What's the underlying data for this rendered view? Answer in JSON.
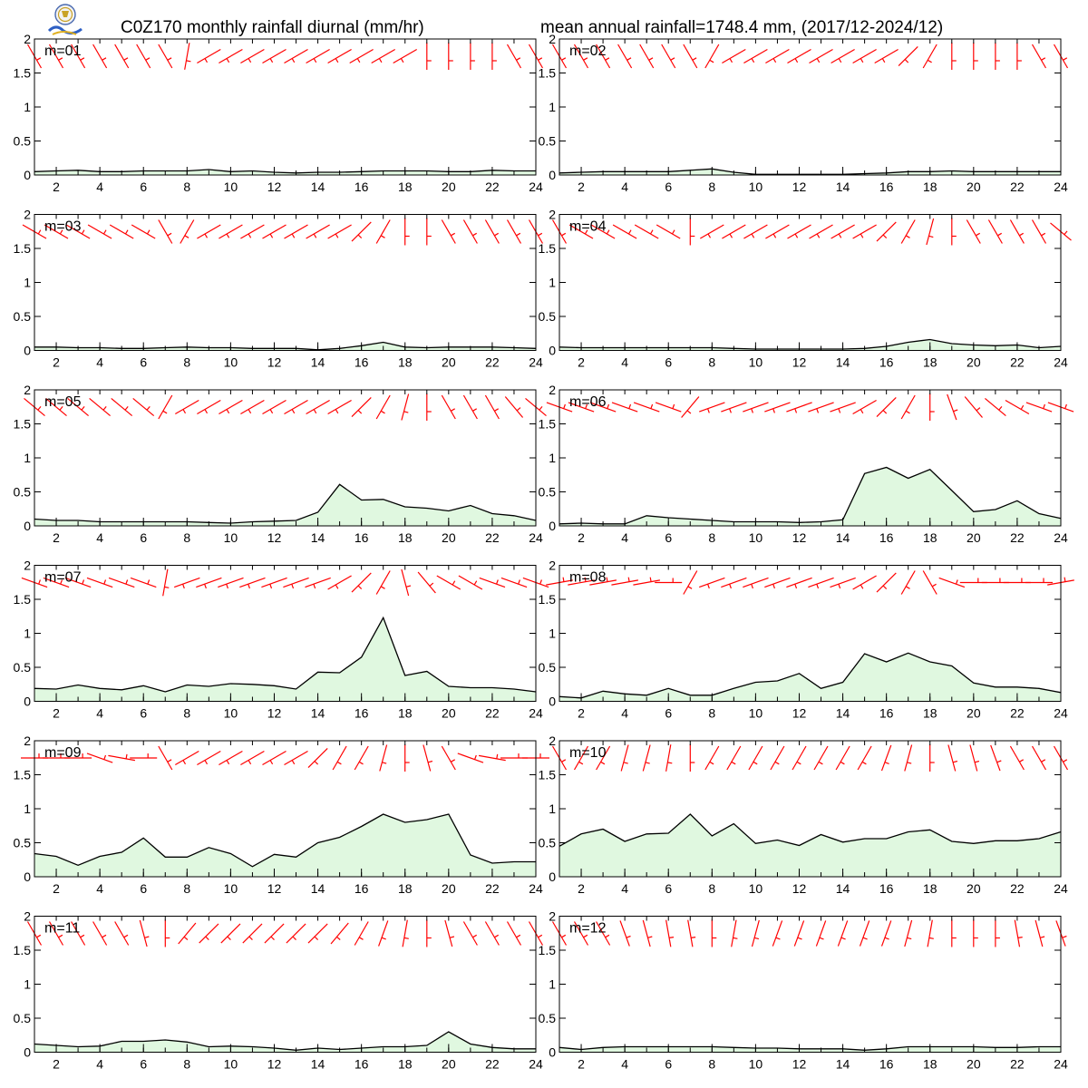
{
  "header": {
    "title_left": "C0Z170 monthly rainfall diurnal (mm/hr)",
    "title_right": "mean annual rainfall=1748.4 mm, (2017/12-2024/12)"
  },
  "colors": {
    "fill": "#e0f8e0",
    "line": "#000000",
    "wind": "#ff0000",
    "frame": "#000000"
  },
  "chart_data": [
    {
      "type": "area",
      "label": "m=01",
      "x": [
        1,
        2,
        3,
        4,
        5,
        6,
        7,
        8,
        9,
        10,
        11,
        12,
        13,
        14,
        15,
        16,
        17,
        18,
        19,
        20,
        21,
        22,
        23,
        24
      ],
      "ylim": [
        0,
        2
      ],
      "yticks": [
        "0",
        "0.5",
        "1",
        "1.5",
        "2"
      ],
      "xticks": [
        "2",
        "4",
        "6",
        "8",
        "10",
        "12",
        "14",
        "16",
        "18",
        "20",
        "22",
        "24"
      ],
      "values": [
        0.05,
        0.06,
        0.07,
        0.05,
        0.05,
        0.06,
        0.06,
        0.06,
        0.08,
        0.05,
        0.06,
        0.04,
        0.03,
        0.04,
        0.04,
        0.05,
        0.06,
        0.06,
        0.06,
        0.05,
        0.05,
        0.07,
        0.06,
        0.06
      ],
      "wind_deg": [
        330,
        330,
        330,
        330,
        330,
        330,
        330,
        10,
        60,
        60,
        60,
        60,
        60,
        60,
        60,
        60,
        60,
        60,
        0,
        0,
        0,
        0,
        330,
        330
      ]
    },
    {
      "type": "area",
      "label": "m=02",
      "x": [
        1,
        2,
        3,
        4,
        5,
        6,
        7,
        8,
        9,
        10,
        11,
        12,
        13,
        14,
        15,
        16,
        17,
        18,
        19,
        20,
        21,
        22,
        23,
        24
      ],
      "ylim": [
        0,
        2
      ],
      "yticks": [
        "0",
        "0.5",
        "1",
        "1.5",
        "2"
      ],
      "xticks": [
        "2",
        "4",
        "6",
        "8",
        "10",
        "12",
        "14",
        "16",
        "18",
        "20",
        "22",
        "24"
      ],
      "values": [
        0.03,
        0.04,
        0.05,
        0.05,
        0.05,
        0.05,
        0.07,
        0.09,
        0.04,
        0.01,
        0.01,
        0.01,
        0.01,
        0.01,
        0.02,
        0.03,
        0.05,
        0.05,
        0.06,
        0.05,
        0.05,
        0.05,
        0.05,
        0.05
      ],
      "wind_deg": [
        330,
        330,
        330,
        330,
        330,
        330,
        330,
        30,
        60,
        60,
        60,
        60,
        60,
        60,
        60,
        60,
        45,
        30,
        0,
        0,
        0,
        0,
        330,
        330
      ]
    },
    {
      "type": "area",
      "label": "m=03",
      "x": [
        1,
        2,
        3,
        4,
        5,
        6,
        7,
        8,
        9,
        10,
        11,
        12,
        13,
        14,
        15,
        16,
        17,
        18,
        19,
        20,
        21,
        22,
        23,
        24
      ],
      "ylim": [
        0,
        2
      ],
      "yticks": [
        "0",
        "0.5",
        "1",
        "1.5",
        "2"
      ],
      "xticks": [
        "2",
        "4",
        "6",
        "8",
        "10",
        "12",
        "14",
        "16",
        "18",
        "20",
        "22",
        "24"
      ],
      "values": [
        0.05,
        0.05,
        0.04,
        0.04,
        0.03,
        0.03,
        0.04,
        0.05,
        0.04,
        0.04,
        0.03,
        0.03,
        0.03,
        0.01,
        0.03,
        0.07,
        0.12,
        0.05,
        0.04,
        0.05,
        0.05,
        0.05,
        0.04,
        0.03
      ],
      "wind_deg": [
        300,
        300,
        300,
        300,
        300,
        300,
        330,
        30,
        60,
        60,
        60,
        60,
        60,
        60,
        60,
        45,
        30,
        0,
        0,
        330,
        330,
        330,
        330,
        330
      ]
    },
    {
      "type": "area",
      "label": "m=04",
      "x": [
        1,
        2,
        3,
        4,
        5,
        6,
        7,
        8,
        9,
        10,
        11,
        12,
        13,
        14,
        15,
        16,
        17,
        18,
        19,
        20,
        21,
        22,
        23,
        24
      ],
      "ylim": [
        0,
        2
      ],
      "yticks": [
        "0",
        "0.5",
        "1",
        "1.5",
        "2"
      ],
      "xticks": [
        "2",
        "4",
        "6",
        "8",
        "10",
        "12",
        "14",
        "16",
        "18",
        "20",
        "22",
        "24"
      ],
      "values": [
        0.05,
        0.04,
        0.04,
        0.04,
        0.04,
        0.04,
        0.04,
        0.04,
        0.03,
        0.02,
        0.02,
        0.02,
        0.02,
        0.02,
        0.03,
        0.06,
        0.12,
        0.16,
        0.1,
        0.08,
        0.07,
        0.08,
        0.04,
        0.06
      ],
      "wind_deg": [
        330,
        300,
        300,
        300,
        300,
        300,
        0,
        60,
        60,
        60,
        60,
        60,
        60,
        60,
        60,
        45,
        30,
        15,
        0,
        330,
        330,
        330,
        330,
        310
      ]
    },
    {
      "type": "area",
      "label": "m=05",
      "x": [
        1,
        2,
        3,
        4,
        5,
        6,
        7,
        8,
        9,
        10,
        11,
        12,
        13,
        14,
        15,
        16,
        17,
        18,
        19,
        20,
        21,
        22,
        23,
        24
      ],
      "ylim": [
        0,
        2
      ],
      "yticks": [
        "0",
        "0.5",
        "1",
        "1.5",
        "2"
      ],
      "xticks": [
        "2",
        "4",
        "6",
        "8",
        "10",
        "12",
        "14",
        "16",
        "18",
        "20",
        "22",
        "24"
      ],
      "values": [
        0.1,
        0.08,
        0.08,
        0.06,
        0.06,
        0.06,
        0.06,
        0.06,
        0.05,
        0.04,
        0.06,
        0.07,
        0.08,
        0.2,
        0.61,
        0.38,
        0.39,
        0.28,
        0.26,
        0.22,
        0.3,
        0.18,
        0.15,
        0.08
      ],
      "wind_deg": [
        310,
        310,
        310,
        310,
        310,
        310,
        30,
        60,
        60,
        60,
        60,
        60,
        60,
        60,
        60,
        45,
        30,
        15,
        0,
        330,
        330,
        330,
        320,
        310
      ]
    },
    {
      "type": "area",
      "label": "m=06",
      "x": [
        1,
        2,
        3,
        4,
        5,
        6,
        7,
        8,
        9,
        10,
        11,
        12,
        13,
        14,
        15,
        16,
        17,
        18,
        19,
        20,
        21,
        22,
        23,
        24
      ],
      "ylim": [
        0,
        2
      ],
      "yticks": [
        "0",
        "0.5",
        "1",
        "1.5",
        "2"
      ],
      "xticks": [
        "2",
        "4",
        "6",
        "8",
        "10",
        "12",
        "14",
        "16",
        "18",
        "20",
        "22",
        "24"
      ],
      "values": [
        0.03,
        0.04,
        0.03,
        0.03,
        0.15,
        0.12,
        0.1,
        0.08,
        0.06,
        0.06,
        0.06,
        0.05,
        0.06,
        0.09,
        0.77,
        0.86,
        0.7,
        0.83,
        0.52,
        0.21,
        0.24,
        0.37,
        0.18,
        0.11
      ],
      "wind_deg": [
        290,
        290,
        290,
        290,
        290,
        290,
        40,
        70,
        70,
        70,
        70,
        70,
        70,
        70,
        60,
        45,
        30,
        0,
        340,
        320,
        310,
        300,
        290,
        290
      ]
    },
    {
      "type": "area",
      "label": "m=07",
      "x": [
        1,
        2,
        3,
        4,
        5,
        6,
        7,
        8,
        9,
        10,
        11,
        12,
        13,
        14,
        15,
        16,
        17,
        18,
        19,
        20,
        21,
        22,
        23,
        24
      ],
      "ylim": [
        0,
        2
      ],
      "yticks": [
        "0",
        "0.5",
        "1",
        "1.5",
        "2"
      ],
      "xticks": [
        "2",
        "4",
        "6",
        "8",
        "10",
        "12",
        "14",
        "16",
        "18",
        "20",
        "22",
        "24"
      ],
      "values": [
        0.19,
        0.18,
        0.24,
        0.19,
        0.17,
        0.23,
        0.14,
        0.24,
        0.22,
        0.26,
        0.25,
        0.23,
        0.18,
        0.43,
        0.42,
        0.65,
        1.23,
        0.38,
        0.44,
        0.22,
        0.2,
        0.2,
        0.18,
        0.14
      ],
      "wind_deg": [
        290,
        290,
        290,
        290,
        290,
        290,
        10,
        70,
        70,
        70,
        70,
        70,
        70,
        70,
        60,
        45,
        30,
        345,
        320,
        300,
        300,
        290,
        290,
        290
      ]
    },
    {
      "type": "area",
      "label": "m=08",
      "x": [
        1,
        2,
        3,
        4,
        5,
        6,
        7,
        8,
        9,
        10,
        11,
        12,
        13,
        14,
        15,
        16,
        17,
        18,
        19,
        20,
        21,
        22,
        23,
        24
      ],
      "ylim": [
        0,
        2
      ],
      "yticks": [
        "0",
        "0.5",
        "1",
        "1.5",
        "2"
      ],
      "xticks": [
        "2",
        "4",
        "6",
        "8",
        "10",
        "12",
        "14",
        "16",
        "18",
        "20",
        "22",
        "24"
      ],
      "values": [
        0.07,
        0.05,
        0.15,
        0.11,
        0.09,
        0.19,
        0.09,
        0.09,
        0.19,
        0.28,
        0.3,
        0.41,
        0.19,
        0.28,
        0.7,
        0.58,
        0.71,
        0.58,
        0.52,
        0.27,
        0.21,
        0.21,
        0.19,
        0.13
      ],
      "wind_deg": [
        260,
        260,
        260,
        260,
        260,
        270,
        30,
        70,
        70,
        70,
        70,
        70,
        70,
        70,
        60,
        45,
        30,
        330,
        290,
        270,
        270,
        270,
        270,
        260
      ]
    },
    {
      "type": "area",
      "label": "m=09",
      "x": [
        1,
        2,
        3,
        4,
        5,
        6,
        7,
        8,
        9,
        10,
        11,
        12,
        13,
        14,
        15,
        16,
        17,
        18,
        19,
        20,
        21,
        22,
        23,
        24
      ],
      "ylim": [
        0,
        2
      ],
      "yticks": [
        "0",
        "0.5",
        "1",
        "1.5",
        "2"
      ],
      "xticks": [
        "2",
        "4",
        "6",
        "8",
        "10",
        "12",
        "14",
        "16",
        "18",
        "20",
        "22",
        "24"
      ],
      "values": [
        0.34,
        0.3,
        0.17,
        0.3,
        0.36,
        0.57,
        0.29,
        0.29,
        0.43,
        0.34,
        0.15,
        0.33,
        0.29,
        0.5,
        0.58,
        0.74,
        0.92,
        0.8,
        0.84,
        0.92,
        0.32,
        0.2,
        0.22,
        0.22
      ],
      "wind_deg": [
        270,
        270,
        270,
        290,
        280,
        270,
        330,
        60,
        60,
        60,
        60,
        60,
        60,
        45,
        30,
        30,
        15,
        0,
        345,
        330,
        290,
        280,
        270,
        270
      ]
    },
    {
      "type": "area",
      "label": "m=10",
      "x": [
        1,
        2,
        3,
        4,
        5,
        6,
        7,
        8,
        9,
        10,
        11,
        12,
        13,
        14,
        15,
        16,
        17,
        18,
        19,
        20,
        21,
        22,
        23,
        24
      ],
      "ylim": [
        0,
        2
      ],
      "yticks": [
        "0",
        "0.5",
        "1",
        "1.5",
        "2"
      ],
      "xticks": [
        "2",
        "4",
        "6",
        "8",
        "10",
        "12",
        "14",
        "16",
        "18",
        "20",
        "22",
        "24"
      ],
      "values": [
        0.45,
        0.63,
        0.7,
        0.52,
        0.63,
        0.64,
        0.92,
        0.6,
        0.78,
        0.49,
        0.54,
        0.46,
        0.62,
        0.51,
        0.56,
        0.56,
        0.66,
        0.69,
        0.52,
        0.49,
        0.53,
        0.53,
        0.56,
        0.66
      ],
      "wind_deg": [
        330,
        30,
        30,
        15,
        15,
        10,
        0,
        30,
        30,
        30,
        30,
        30,
        30,
        30,
        30,
        20,
        15,
        0,
        345,
        345,
        340,
        330,
        330,
        330
      ]
    },
    {
      "type": "area",
      "label": "m=11",
      "x": [
        1,
        2,
        3,
        4,
        5,
        6,
        7,
        8,
        9,
        10,
        11,
        12,
        13,
        14,
        15,
        16,
        17,
        18,
        19,
        20,
        21,
        22,
        23,
        24
      ],
      "ylim": [
        0,
        2
      ],
      "yticks": [
        "0",
        "0.5",
        "1",
        "1.5",
        "2"
      ],
      "xticks": [
        "2",
        "4",
        "6",
        "8",
        "10",
        "12",
        "14",
        "16",
        "18",
        "20",
        "22",
        "24"
      ],
      "values": [
        0.12,
        0.1,
        0.08,
        0.09,
        0.16,
        0.16,
        0.18,
        0.15,
        0.08,
        0.09,
        0.08,
        0.06,
        0.03,
        0.06,
        0.04,
        0.06,
        0.08,
        0.08,
        0.1,
        0.3,
        0.12,
        0.07,
        0.05,
        0.05
      ],
      "wind_deg": [
        330,
        330,
        330,
        330,
        330,
        345,
        0,
        40,
        45,
        45,
        45,
        45,
        45,
        45,
        40,
        30,
        20,
        10,
        0,
        345,
        330,
        330,
        330,
        330
      ]
    },
    {
      "type": "area",
      "label": "m=12",
      "x": [
        1,
        2,
        3,
        4,
        5,
        6,
        7,
        8,
        9,
        10,
        11,
        12,
        13,
        14,
        15,
        16,
        17,
        18,
        19,
        20,
        21,
        22,
        23,
        24
      ],
      "ylim": [
        0,
        2
      ],
      "yticks": [
        "0",
        "0.5",
        "1",
        "1.5",
        "2"
      ],
      "xticks": [
        "2",
        "4",
        "6",
        "8",
        "10",
        "12",
        "14",
        "16",
        "18",
        "20",
        "22",
        "24"
      ],
      "values": [
        0.07,
        0.04,
        0.07,
        0.08,
        0.08,
        0.08,
        0.08,
        0.08,
        0.07,
        0.06,
        0.06,
        0.05,
        0.05,
        0.05,
        0.03,
        0.05,
        0.08,
        0.08,
        0.08,
        0.08,
        0.07,
        0.07,
        0.08,
        0.08
      ],
      "wind_deg": [
        330,
        330,
        330,
        340,
        345,
        350,
        350,
        0,
        10,
        15,
        20,
        20,
        20,
        20,
        20,
        20,
        15,
        10,
        0,
        0,
        0,
        350,
        345,
        340
      ]
    }
  ]
}
